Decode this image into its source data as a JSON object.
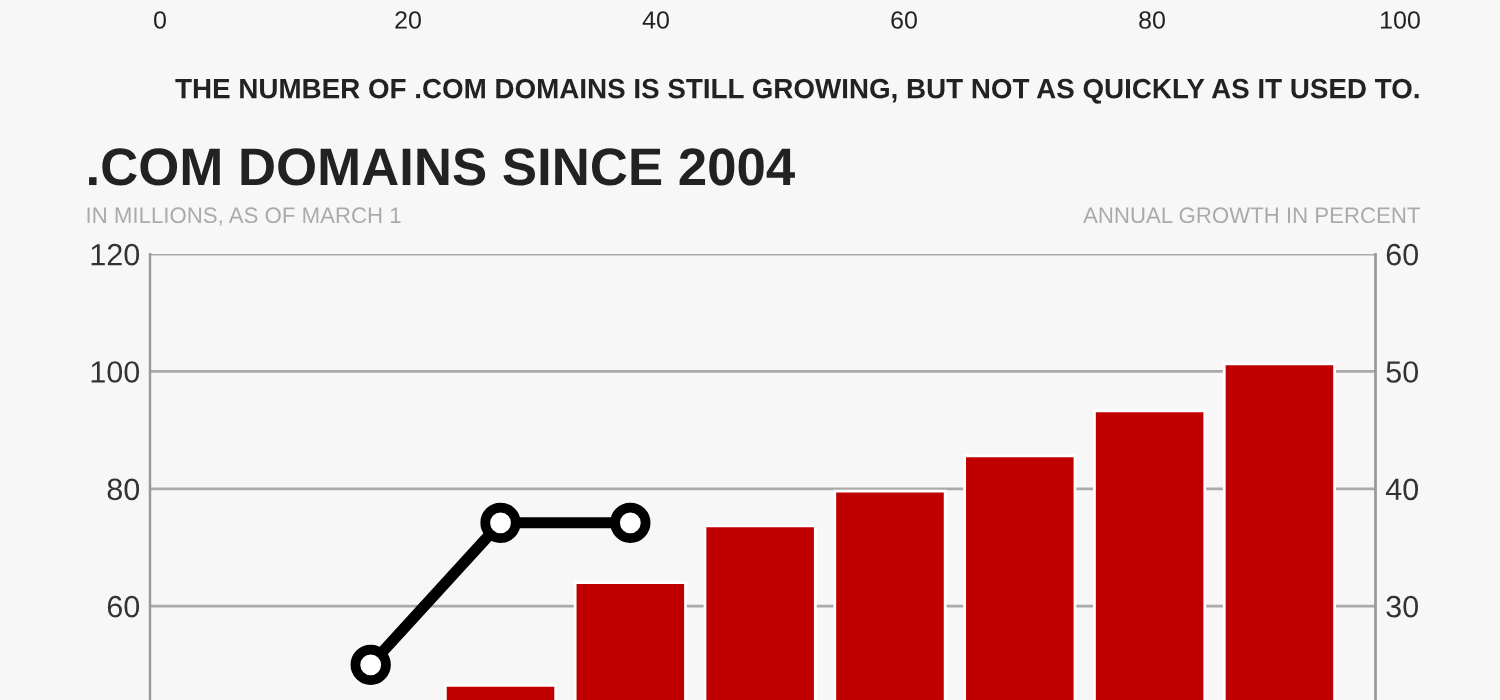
{
  "chart_data": {
    "type": "bar",
    "title": ".COM DOMAINS SINCE 2004",
    "ylabel": "IN MILLIONS, AS OF MARCH 1",
    "y2label": "ANNUAL GROWTH IN PERCENT",
    "annotations": [
      "0",
      "20",
      "40",
      "60",
      "80",
      "100",
      "THE NUMBER OF .COM DOMAINS IS STILL GROWING, BUT NOT AS QUICKLY AS IT USED TO."
    ],
    "categories": [
      null,
      null,
      null,
      null,
      null,
      null,
      null,
      null,
      null
    ],
    "series": [
      {
        "color": "#c00000",
        "values": [
          null,
          null,
          46.5,
          64.0,
          73.7,
          79.6,
          85.6,
          93.3,
          101.3
        ]
      },
      {
        "type": "line",
        "axis": "y2",
        "color": "#000000",
        "marker": "circle",
        "values": [
          null,
          25.0,
          37.1,
          37.1,
          null,
          null,
          null,
          null,
          null
        ]
      }
    ],
    "ylim": [
      44,
      120
    ],
    "yticks": [
      60,
      80,
      100,
      120
    ],
    "y2lim": [
      22,
      60
    ],
    "y2ticks": [
      30,
      40,
      50,
      60
    ],
    "grid": "y",
    "legend": false
  }
}
